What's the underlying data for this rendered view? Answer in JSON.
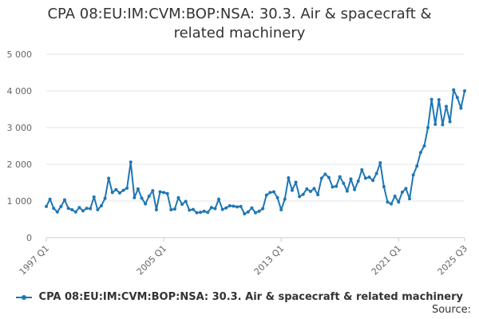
{
  "chart_data": {
    "type": "line",
    "title_lines": [
      "CPA 08:EU:IM:CVM:BOP:NSA: 30.3. Air & spacecraft &",
      "related machinery"
    ],
    "xlabel": "",
    "ylabel": "",
    "ylim": [
      0,
      5000
    ],
    "y_ticks": [
      0,
      1000,
      2000,
      3000,
      4000,
      5000
    ],
    "y_tick_labels": [
      "0",
      "1 000",
      "2 000",
      "3 000",
      "4 000",
      "5 000"
    ],
    "x_tick_labels": [
      {
        "label": "1997 Q1",
        "index": 0
      },
      {
        "label": "2005 Q1",
        "index": 32
      },
      {
        "label": "2013 Q1",
        "index": 64
      },
      {
        "label": "2021 Q1",
        "index": 96
      },
      {
        "label": "2025 Q3",
        "index": 114
      }
    ],
    "grid": true,
    "legend_position": "bottom",
    "series": [
      {
        "name": "CPA 08:EU:IM:CVM:BOP:NSA: 30.3. Air & spacecraft & related machinery",
        "color": "#1f77b4",
        "values": [
          850,
          1050,
          800,
          700,
          850,
          1030,
          800,
          760,
          700,
          820,
          730,
          800,
          790,
          1110,
          760,
          870,
          1070,
          1620,
          1230,
          1310,
          1220,
          1290,
          1350,
          2060,
          1090,
          1330,
          1080,
          920,
          1130,
          1280,
          760,
          1250,
          1230,
          1200,
          760,
          780,
          1090,
          910,
          990,
          750,
          770,
          680,
          690,
          720,
          690,
          820,
          790,
          1050,
          770,
          810,
          870,
          860,
          840,
          850,
          650,
          700,
          810,
          680,
          720,
          790,
          1160,
          1230,
          1250,
          1090,
          760,
          1050,
          1630,
          1290,
          1510,
          1120,
          1180,
          1330,
          1260,
          1340,
          1170,
          1620,
          1730,
          1640,
          1380,
          1400,
          1660,
          1480,
          1270,
          1600,
          1310,
          1540,
          1850,
          1620,
          1650,
          1560,
          1750,
          2040,
          1390,
          970,
          920,
          1130,
          970,
          1240,
          1340,
          1060,
          1710,
          1950,
          2320,
          2500,
          3000,
          3770,
          3090,
          3760,
          3080,
          3580,
          3160,
          4030,
          3820,
          3530,
          4000
        ]
      }
    ]
  },
  "legend": {
    "label": "CPA 08:EU:IM:CVM:BOP:NSA: 30.3. Air & spacecraft & related machinery"
  },
  "source": {
    "label": "Source:"
  }
}
